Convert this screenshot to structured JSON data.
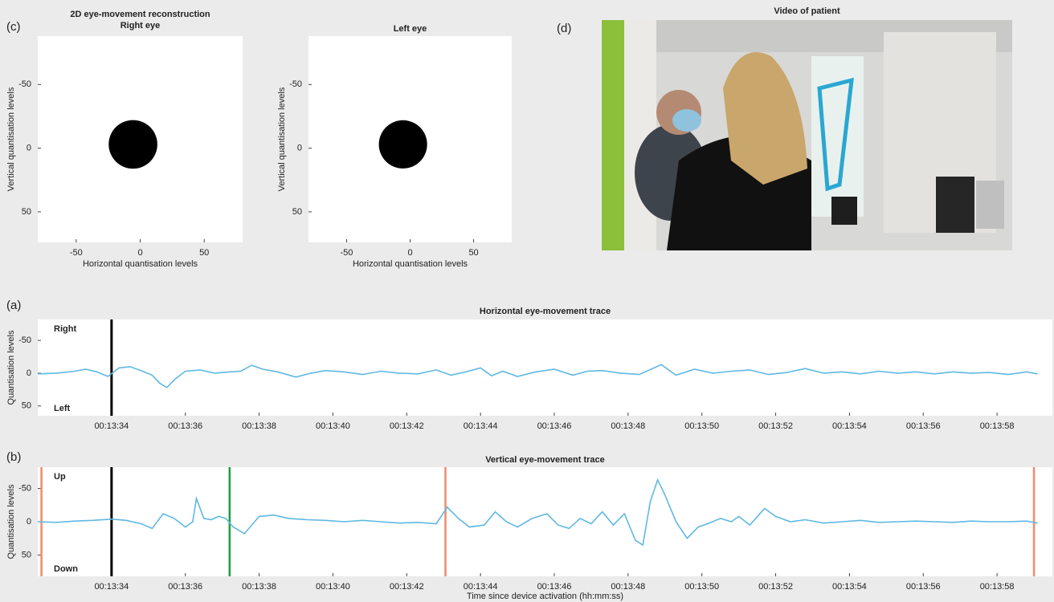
{
  "chart_data": [
    {
      "type": "scatter",
      "panel_label": "(c)",
      "title": "2D eye-movement reconstruction",
      "subtitle": "Right eye",
      "xlabel": "Horizontal quantisation levels",
      "ylabel": "Vertical quantisation levels",
      "xlim": [
        -80,
        80
      ],
      "ylim": [
        -88,
        74
      ],
      "y_reversed": true,
      "xticks": [
        -50,
        0,
        50
      ],
      "yticks": [
        -50,
        0,
        50
      ],
      "color": "#000000",
      "points": [
        {
          "x": -5.6,
          "y": -3,
          "r": 19
        }
      ]
    },
    {
      "type": "scatter",
      "title": "Left eye",
      "xlabel": "Horizontal quantisation levels",
      "ylabel": "Vertical quantisation levels",
      "xlim": [
        -80,
        80
      ],
      "ylim": [
        -88,
        74
      ],
      "y_reversed": true,
      "xticks": [
        -50,
        0,
        50
      ],
      "yticks": [
        -50,
        0,
        50
      ],
      "color": "#000000",
      "points": [
        {
          "x": -5.6,
          "y": -3,
          "r": 19
        }
      ]
    },
    {
      "type": "image",
      "panel_label": "(d)",
      "title": "Video of patient"
    },
    {
      "type": "line",
      "panel_label": "(a)",
      "title": "Horizontal eye-movement trace",
      "ylabel": "Quantisation levels",
      "annotations": [
        "Right",
        "Left"
      ],
      "xlim": [
        812,
        839.5
      ],
      "ylim": [
        -82,
        65
      ],
      "y_reversed": true,
      "yticks": [
        -50,
        0,
        50
      ],
      "xticks": [
        {
          "value": 814,
          "label": "00:13:34"
        },
        {
          "value": 816,
          "label": "00:13:36"
        },
        {
          "value": 818,
          "label": "00:13:38"
        },
        {
          "value": 820,
          "label": "00:13:40"
        },
        {
          "value": 822,
          "label": "00:13:42"
        },
        {
          "value": 824,
          "label": "00:13:44"
        },
        {
          "value": 826,
          "label": "00:13:46"
        },
        {
          "value": 828,
          "label": "00:13:48"
        },
        {
          "value": 830,
          "label": "00:13:50"
        },
        {
          "value": 832,
          "label": "00:13:52"
        },
        {
          "value": 834,
          "label": "00:13:54"
        },
        {
          "value": 836,
          "label": "00:13:56"
        },
        {
          "value": 838,
          "label": "00:13:58"
        }
      ],
      "vlines": [
        {
          "x": 814.0,
          "color": "#000000"
        }
      ],
      "x": [
        812,
        812.5,
        813,
        813.3,
        813.6,
        813.9,
        814.2,
        814.5,
        814.8,
        815.1,
        815.3,
        815.5,
        815.7,
        816,
        816.4,
        816.8,
        817.2,
        817.5,
        817.8,
        818.1,
        818.5,
        819,
        819.4,
        819.8,
        820.3,
        820.8,
        821.3,
        821.8,
        822.3,
        822.8,
        823.2,
        823.6,
        824,
        824.3,
        824.6,
        825,
        825.5,
        826,
        826.5,
        826.9,
        827.3,
        827.8,
        828.3,
        828.9,
        829.3,
        829.8,
        830.3,
        830.8,
        831.3,
        831.8,
        832.3,
        832.8,
        833.3,
        833.8,
        834.3,
        834.8,
        835.3,
        835.8,
        836.3,
        836.8,
        837.3,
        837.8,
        838.3,
        838.8,
        839.1
      ],
      "color": "#5fb8e2",
      "values": [
        1,
        0,
        -3,
        -6,
        -2,
        5,
        -8,
        -10,
        -4,
        3,
        15,
        22,
        10,
        -3,
        -5,
        0,
        -2,
        -3,
        -12,
        -6,
        -2,
        6,
        0,
        -4,
        -2,
        2,
        -3,
        0,
        1,
        -5,
        3,
        -2,
        -8,
        4,
        -3,
        5,
        -2,
        -6,
        3,
        -3,
        -4,
        0,
        2,
        -13,
        3,
        -6,
        0,
        -3,
        -5,
        2,
        -1,
        -7,
        0,
        -2,
        1,
        -3,
        0,
        -2,
        1,
        -2,
        0,
        -1,
        2,
        -2,
        1
      ]
    },
    {
      "type": "line",
      "panel_label": "(b)",
      "title": "Vertical eye-movement trace",
      "ylabel": "Quantisation levels",
      "xlabel": "Time since device activation (hh:mm:ss)",
      "annotations": [
        "Up",
        "Down"
      ],
      "xlim": [
        812,
        839.5
      ],
      "ylim": [
        -82,
        82
      ],
      "y_reversed": true,
      "yticks": [
        -50,
        0,
        50
      ],
      "xticks": [
        {
          "value": 814,
          "label": "00:13:34"
        },
        {
          "value": 816,
          "label": "00:13:36"
        },
        {
          "value": 818,
          "label": "00:13:38"
        },
        {
          "value": 820,
          "label": "00:13:40"
        },
        {
          "value": 822,
          "label": "00:13:42"
        },
        {
          "value": 824,
          "label": "00:13:44"
        },
        {
          "value": 826,
          "label": "00:13:46"
        },
        {
          "value": 828,
          "label": "00:13:48"
        },
        {
          "value": 830,
          "label": "00:13:50"
        },
        {
          "value": 832,
          "label": "00:13:52"
        },
        {
          "value": 834,
          "label": "00:13:54"
        },
        {
          "value": 836,
          "label": "00:13:56"
        },
        {
          "value": 838,
          "label": "00:13:58"
        }
      ],
      "vlines": [
        {
          "x": 812.1,
          "color": "#f08a6c"
        },
        {
          "x": 814.0,
          "color": "#000000"
        },
        {
          "x": 817.2,
          "color": "#1a9e3f"
        },
        {
          "x": 823.05,
          "color": "#f08a6c"
        },
        {
          "x": 839.0,
          "color": "#f08a6c"
        }
      ],
      "x": [
        812,
        812.5,
        813,
        813.5,
        814,
        814.4,
        814.8,
        815.1,
        815.4,
        815.7,
        816,
        816.2,
        816.3,
        816.5,
        816.7,
        816.9,
        817.1,
        817.3,
        817.6,
        818,
        818.4,
        818.8,
        819.3,
        819.8,
        820.3,
        820.8,
        821.3,
        821.8,
        822.3,
        822.8,
        823.1,
        823.4,
        823.7,
        824.1,
        824.4,
        824.7,
        825,
        825.4,
        825.8,
        826.1,
        826.4,
        826.7,
        827,
        827.3,
        827.6,
        827.9,
        828.2,
        828.4,
        828.6,
        828.8,
        829,
        829.3,
        829.6,
        829.9,
        830.2,
        830.5,
        830.8,
        831,
        831.3,
        831.7,
        832,
        832.4,
        832.8,
        833.3,
        833.8,
        834.3,
        834.8,
        835.3,
        835.8,
        836.3,
        836.8,
        837.3,
        837.8,
        838.3,
        838.8,
        839.1
      ],
      "color": "#5fb8e2",
      "values": [
        0,
        1,
        -1,
        -2,
        -4,
        -2,
        3,
        10,
        -12,
        -5,
        8,
        0,
        -35,
        -5,
        -3,
        -8,
        -5,
        8,
        18,
        -8,
        -10,
        -5,
        -3,
        -2,
        0,
        -2,
        0,
        2,
        1,
        3,
        -22,
        -5,
        8,
        5,
        -15,
        0,
        8,
        -5,
        -12,
        5,
        10,
        -5,
        3,
        -15,
        5,
        -12,
        28,
        35,
        -30,
        -63,
        -40,
        0,
        25,
        8,
        2,
        -5,
        0,
        -8,
        5,
        -20,
        -8,
        0,
        -3,
        2,
        0,
        -2,
        1,
        0,
        -1,
        0,
        1,
        -1,
        0,
        0,
        -1,
        2
      ]
    }
  ]
}
